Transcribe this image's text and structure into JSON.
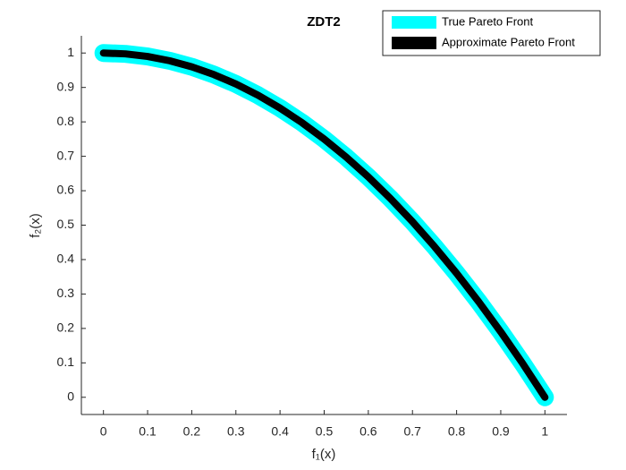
{
  "chart_data": {
    "type": "line",
    "title": "ZDT2",
    "xlabel": "f₁(x)",
    "ylabel": "f₂(x)",
    "x": [
      0,
      0.05,
      0.1,
      0.15,
      0.2,
      0.25,
      0.3,
      0.35,
      0.4,
      0.45,
      0.5,
      0.55,
      0.6,
      0.65,
      0.7,
      0.75,
      0.8,
      0.85,
      0.9,
      0.95,
      1
    ],
    "series": [
      {
        "name": "True Pareto Front",
        "color": "#00ffff",
        "values": [
          1,
          0.9975,
          0.99,
          0.9775,
          0.96,
          0.9375,
          0.91,
          0.8775,
          0.84,
          0.7975,
          0.75,
          0.6975,
          0.64,
          0.5775,
          0.51,
          0.4375,
          0.36,
          0.2775,
          0.19,
          0.0975,
          0
        ]
      },
      {
        "name": "Approximate Pareto Front",
        "color": "#000000",
        "values": [
          1,
          0.9975,
          0.99,
          0.9775,
          0.96,
          0.9375,
          0.91,
          0.8775,
          0.84,
          0.7975,
          0.75,
          0.6975,
          0.64,
          0.5775,
          0.51,
          0.4375,
          0.36,
          0.2775,
          0.19,
          0.0975,
          0
        ]
      }
    ],
    "xlim": [
      -0.05,
      1.05
    ],
    "ylim": [
      -0.05,
      1.05
    ],
    "xticks": [
      0,
      0.1,
      0.2,
      0.3,
      0.4,
      0.5,
      0.6,
      0.7,
      0.8,
      0.9,
      1
    ],
    "yticks": [
      0,
      0.1,
      0.2,
      0.3,
      0.4,
      0.5,
      0.6,
      0.7,
      0.8,
      0.9,
      1
    ],
    "legend": "northeast"
  }
}
